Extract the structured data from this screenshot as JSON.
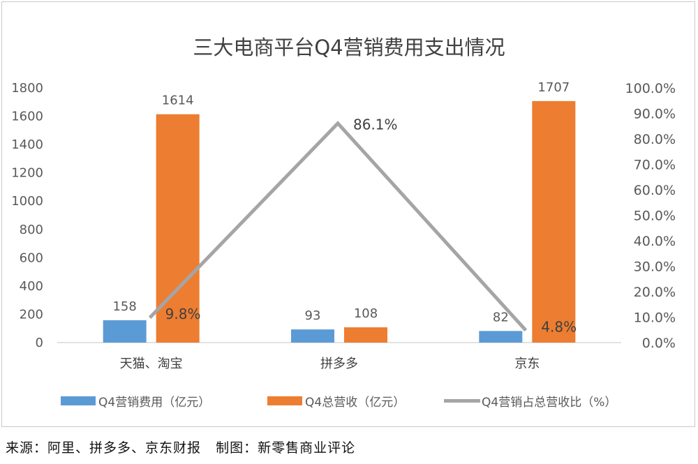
{
  "chart_data": {
    "type": "bar",
    "title": "三大电商平台Q4营销费用支出情况",
    "categories": [
      "天猫、淘宝",
      "拼多多",
      "京东"
    ],
    "series": [
      {
        "name": "Q4营销费用（亿元）",
        "type": "bar",
        "axis": "left",
        "color": "#5b9bd5",
        "values": [
          158,
          93,
          82
        ]
      },
      {
        "name": "Q4总营收（亿元）",
        "type": "bar",
        "axis": "left",
        "color": "#ed7d31",
        "values": [
          1614,
          108,
          1707
        ]
      },
      {
        "name": "Q4营销占总营收比（%）",
        "type": "line",
        "axis": "right",
        "color": "#a5a5a5",
        "values": [
          9.8,
          86.1,
          4.8
        ],
        "value_labels": [
          "9.8%",
          "86.1%",
          "4.8%"
        ]
      }
    ],
    "left_axis": {
      "min": 0,
      "max": 1800,
      "step": 200,
      "ticks": [
        "0",
        "200",
        "400",
        "600",
        "800",
        "1000",
        "1200",
        "1400",
        "1600",
        "1800"
      ]
    },
    "right_axis": {
      "min": 0,
      "max": 100,
      "step": 10,
      "ticks": [
        "0.0%",
        "10.0%",
        "20.0%",
        "30.0%",
        "40.0%",
        "50.0%",
        "60.0%",
        "70.0%",
        "80.0%",
        "90.0%",
        "100.0%"
      ]
    },
    "grid": false,
    "legend": "bottom"
  },
  "legend_labels": {
    "series1": "Q4营销费用（亿元）",
    "series2": "Q4总营收（亿元）",
    "series3": "Q4营销占总营收比（%）"
  },
  "source_text": "来源：阿里、拼多多、京东财报   制图：新零售商业评论"
}
